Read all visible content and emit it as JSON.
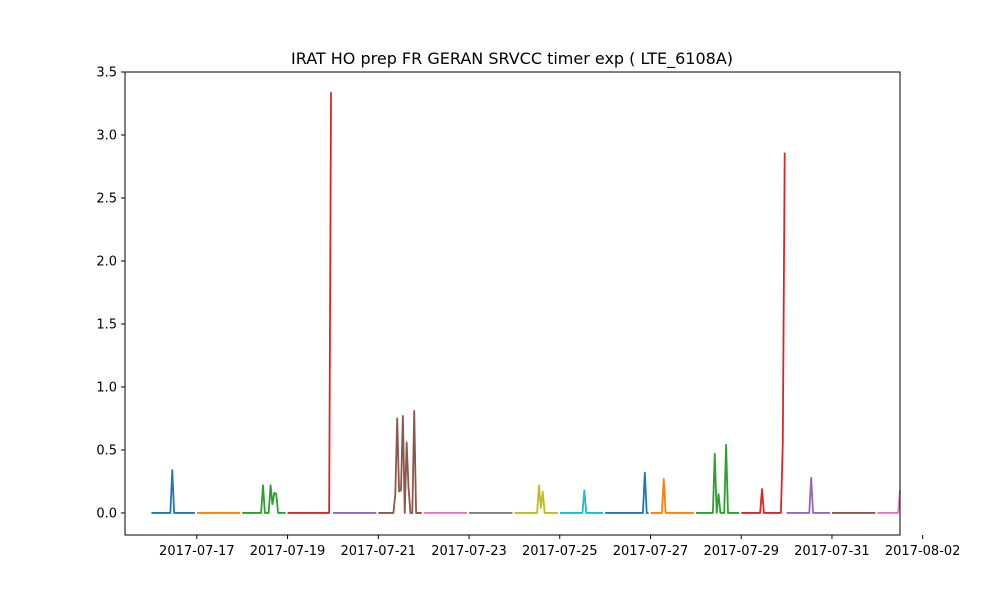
{
  "chart_data": {
    "type": "line",
    "title": "IRAT HO prep FR GERAN SRVCC timer exp ( LTE_6108A)",
    "xlabel": "",
    "ylabel": "",
    "xlim": [
      "2017-07-15T10:00",
      "2017-08-01T12:00"
    ],
    "ylim": [
      -0.175,
      3.5
    ],
    "yticks": [
      0.0,
      0.5,
      1.0,
      1.5,
      2.0,
      2.5,
      3.0,
      3.5
    ],
    "ytick_labels": [
      "0.0",
      "0.5",
      "1.0",
      "1.5",
      "2.0",
      "2.5",
      "3.0",
      "3.5"
    ],
    "xticks": [
      "2017-07-17",
      "2017-07-19",
      "2017-07-21",
      "2017-07-23",
      "2017-07-25",
      "2017-07-27",
      "2017-07-29",
      "2017-07-31",
      "2017-08-02"
    ],
    "grid": false,
    "legend": "none",
    "series": [
      {
        "color": "#1f77b4",
        "points": [
          [
            "2017-07-16T00:00",
            0
          ],
          [
            "2017-07-16T10:00",
            0
          ],
          [
            "2017-07-16T11:00",
            0.34
          ],
          [
            "2017-07-16T12:00",
            0
          ],
          [
            "2017-07-16T23:00",
            0
          ]
        ]
      },
      {
        "color": "#ff7f0e",
        "points": [
          [
            "2017-07-17T00:00",
            0
          ],
          [
            "2017-07-17T23:00",
            0
          ]
        ]
      },
      {
        "color": "#2ca02c",
        "points": [
          [
            "2017-07-18T00:00",
            0
          ],
          [
            "2017-07-18T10:00",
            0
          ],
          [
            "2017-07-18T11:00",
            0.22
          ],
          [
            "2017-07-18T12:00",
            0
          ],
          [
            "2017-07-18T14:00",
            0
          ],
          [
            "2017-07-18T15:00",
            0.22
          ],
          [
            "2017-07-18T16:00",
            0.07
          ],
          [
            "2017-07-18T17:00",
            0.16
          ],
          [
            "2017-07-18T18:00",
            0.15
          ],
          [
            "2017-07-18T19:00",
            0
          ],
          [
            "2017-07-18T23:00",
            0
          ]
        ]
      },
      {
        "color": "#d62728",
        "points": [
          [
            "2017-07-19T00:00",
            0
          ],
          [
            "2017-07-19T22:00",
            0
          ],
          [
            "2017-07-19T23:00",
            3.34
          ]
        ]
      },
      {
        "color": "#9467bd",
        "points": [
          [
            "2017-07-20T00:00",
            0
          ],
          [
            "2017-07-20T23:00",
            0
          ]
        ]
      },
      {
        "color": "#8c564b",
        "points": [
          [
            "2017-07-21T00:00",
            0
          ],
          [
            "2017-07-21T08:00",
            0
          ],
          [
            "2017-07-21T09:00",
            0.15
          ],
          [
            "2017-07-21T10:00",
            0.75
          ],
          [
            "2017-07-21T11:00",
            0.17
          ],
          [
            "2017-07-21T12:00",
            0.18
          ],
          [
            "2017-07-21T13:00",
            0.77
          ],
          [
            "2017-07-21T14:00",
            0
          ],
          [
            "2017-07-21T15:00",
            0.56
          ],
          [
            "2017-07-21T16:00",
            0.2
          ],
          [
            "2017-07-21T17:00",
            0
          ],
          [
            "2017-07-21T18:00",
            0
          ],
          [
            "2017-07-21T19:00",
            0.81
          ],
          [
            "2017-07-21T20:00",
            0
          ],
          [
            "2017-07-21T23:00",
            0
          ]
        ]
      },
      {
        "color": "#e377c2",
        "points": [
          [
            "2017-07-22T00:00",
            0
          ],
          [
            "2017-07-22T23:00",
            0
          ]
        ]
      },
      {
        "color": "#7f7f7f",
        "points": [
          [
            "2017-07-23T00:00",
            0
          ],
          [
            "2017-07-23T23:00",
            0
          ]
        ]
      },
      {
        "color": "#bcbd22",
        "points": [
          [
            "2017-07-24T00:00",
            0
          ],
          [
            "2017-07-24T12:00",
            0
          ],
          [
            "2017-07-24T13:00",
            0.22
          ],
          [
            "2017-07-24T14:00",
            0.04
          ],
          [
            "2017-07-24T15:00",
            0.17
          ],
          [
            "2017-07-24T16:00",
            0
          ],
          [
            "2017-07-24T23:00",
            0
          ]
        ]
      },
      {
        "color": "#17becf",
        "points": [
          [
            "2017-07-25T00:00",
            0
          ],
          [
            "2017-07-25T12:00",
            0
          ],
          [
            "2017-07-25T13:00",
            0.18
          ],
          [
            "2017-07-25T14:00",
            0
          ],
          [
            "2017-07-25T23:00",
            0
          ]
        ]
      },
      {
        "color": "#1f77b4",
        "points": [
          [
            "2017-07-26T00:00",
            0
          ],
          [
            "2017-07-26T20:00",
            0
          ],
          [
            "2017-07-26T21:00",
            0.32
          ],
          [
            "2017-07-26T22:00",
            0
          ],
          [
            "2017-07-26T23:00",
            0
          ]
        ]
      },
      {
        "color": "#ff7f0e",
        "points": [
          [
            "2017-07-27T00:00",
            0
          ],
          [
            "2017-07-27T06:00",
            0
          ],
          [
            "2017-07-27T07:00",
            0.27
          ],
          [
            "2017-07-27T08:00",
            0
          ],
          [
            "2017-07-27T23:00",
            0
          ]
        ]
      },
      {
        "color": "#2ca02c",
        "points": [
          [
            "2017-07-28T00:00",
            0
          ],
          [
            "2017-07-28T09:00",
            0
          ],
          [
            "2017-07-28T10:00",
            0.47
          ],
          [
            "2017-07-28T11:00",
            0
          ],
          [
            "2017-07-28T12:00",
            0.15
          ],
          [
            "2017-07-28T13:00",
            0
          ],
          [
            "2017-07-28T15:00",
            0
          ],
          [
            "2017-07-28T16:00",
            0.54
          ],
          [
            "2017-07-28T17:00",
            0
          ],
          [
            "2017-07-28T23:00",
            0
          ]
        ]
      },
      {
        "color": "#d62728",
        "points": [
          [
            "2017-07-29T00:00",
            0
          ],
          [
            "2017-07-29T10:00",
            0
          ],
          [
            "2017-07-29T11:00",
            0.19
          ],
          [
            "2017-07-29T12:00",
            0
          ],
          [
            "2017-07-29T18:00",
            0
          ],
          [
            "2017-07-29T21:00",
            0
          ],
          [
            "2017-07-29T22:00",
            0.56
          ],
          [
            "2017-07-29T23:00",
            2.86
          ]
        ]
      },
      {
        "color": "#9467bd",
        "points": [
          [
            "2017-07-30T00:00",
            0
          ],
          [
            "2017-07-30T12:00",
            0
          ],
          [
            "2017-07-30T13:00",
            0.28
          ],
          [
            "2017-07-30T14:00",
            0
          ],
          [
            "2017-07-30T23:00",
            0
          ]
        ]
      },
      {
        "color": "#8c564b",
        "points": [
          [
            "2017-07-31T00:00",
            0
          ],
          [
            "2017-07-31T23:00",
            0
          ]
        ]
      },
      {
        "color": "#e377c2",
        "points": [
          [
            "2017-08-01T00:00",
            0
          ],
          [
            "2017-08-01T11:00",
            0
          ],
          [
            "2017-08-01T12:00",
            0.18
          ]
        ]
      }
    ]
  }
}
